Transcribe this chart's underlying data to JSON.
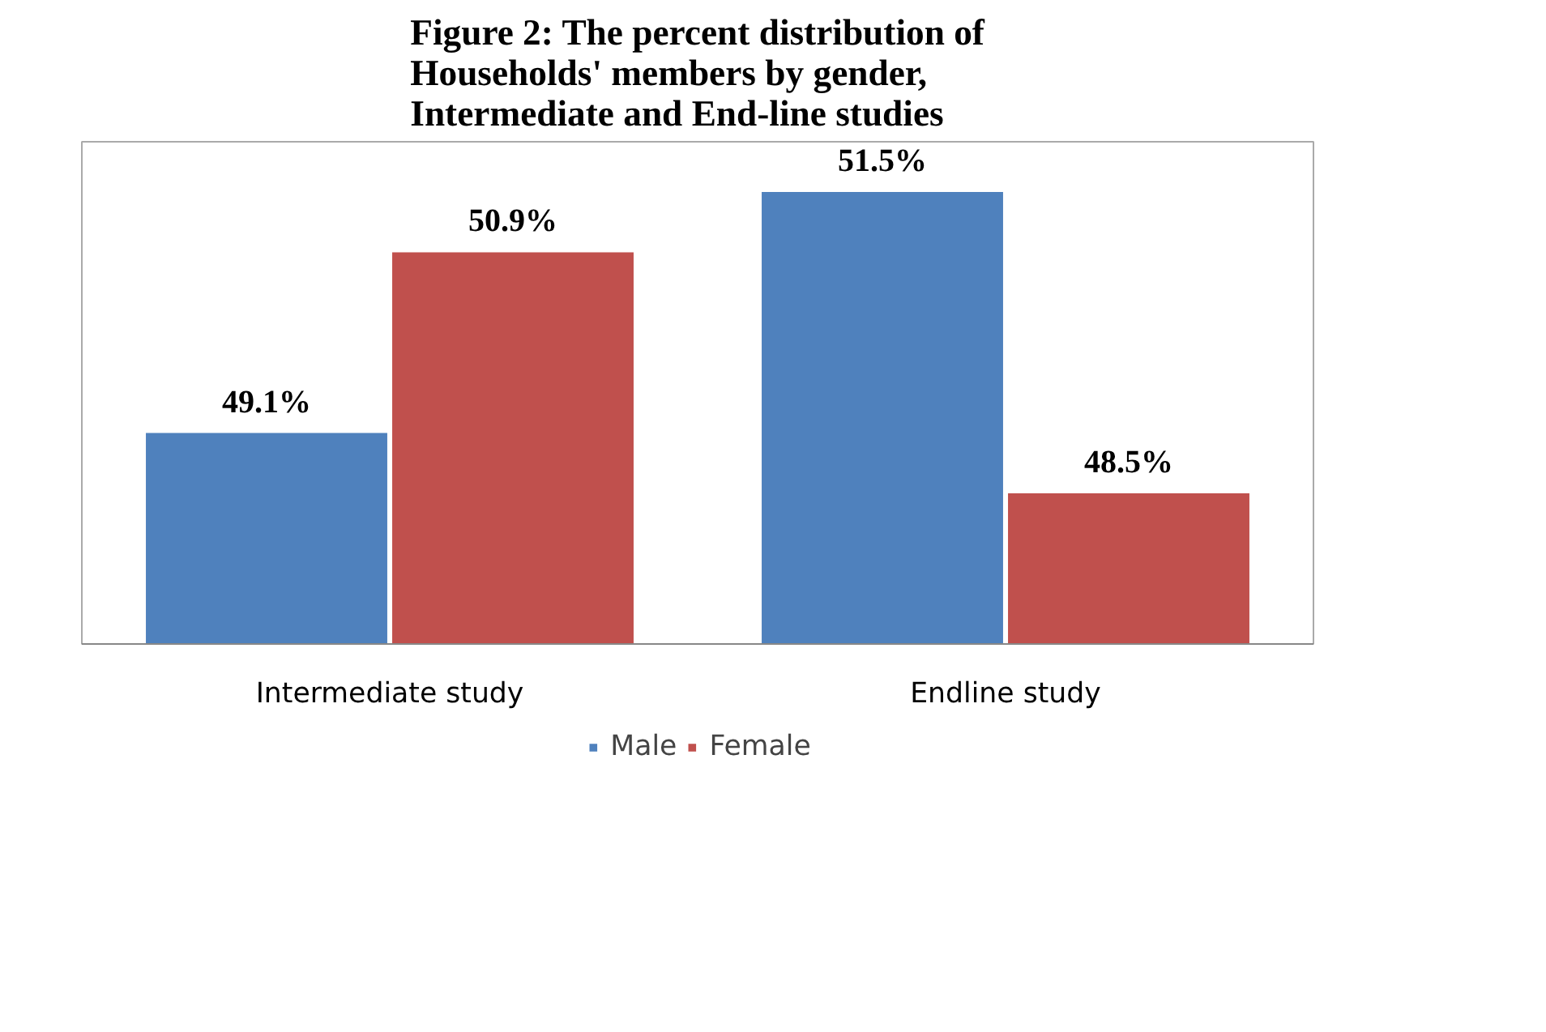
{
  "chart_data": {
    "type": "bar",
    "title": "Figure 2: The percent distribution of Households' members by gender, Intermediate and End-line studies",
    "categories": [
      "Intermediate study",
      "Endline study"
    ],
    "series": [
      {
        "name": "Male",
        "color": "#4f81bd",
        "values": [
          49.1,
          51.5
        ],
        "value_labels": [
          "49.1%",
          "51.5%"
        ]
      },
      {
        "name": "Female",
        "color": "#c0504d",
        "values": [
          50.9,
          48.5
        ],
        "value_labels": [
          "50.9%",
          "48.5%"
        ]
      }
    ],
    "ylim": [
      47,
      52
    ],
    "tick_labels": "x",
    "legend": "bottom"
  }
}
